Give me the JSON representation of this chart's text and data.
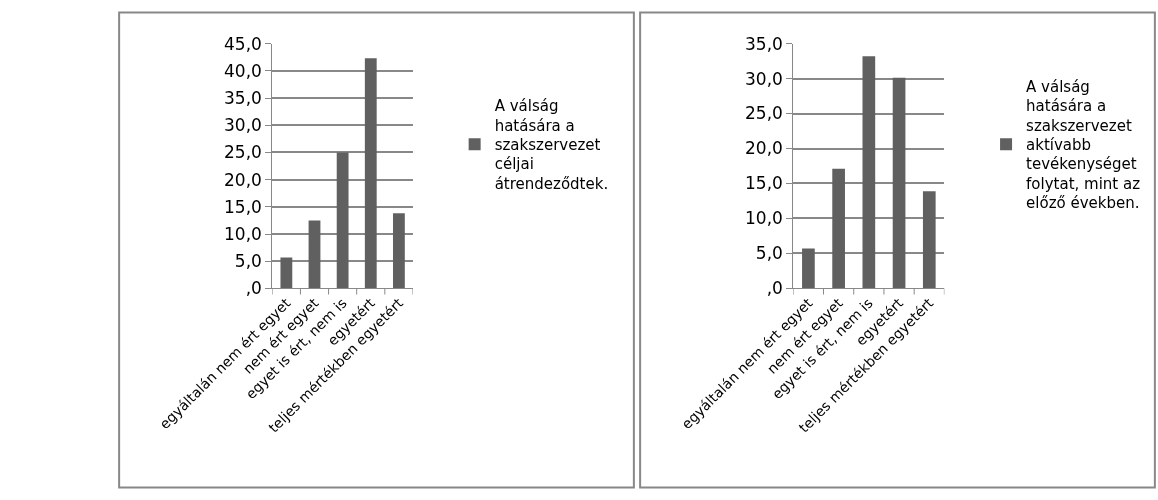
{
  "chart_data": [
    {
      "type": "bar",
      "categories": [
        "egyáltalán nem ért egyet",
        "nem ért egyet",
        "egyet is ért, nem is",
        "egyetért",
        "teljes mértékben egyetért"
      ],
      "series": [
        {
          "name": "A válság hatására a szakszervezet céljai átrendeződtek.",
          "color": "#606060",
          "values": [
            5.7,
            12.5,
            25.0,
            42.3,
            13.8
          ]
        }
      ],
      "ylim": [
        0,
        45
      ],
      "yticks": [
        {
          "value": 0,
          "label": ",0"
        },
        {
          "value": 5,
          "label": "5,0"
        },
        {
          "value": 10,
          "label": "10,0"
        },
        {
          "value": 15,
          "label": "15,0"
        },
        {
          "value": 20,
          "label": "20,0"
        },
        {
          "value": 25,
          "label": "25,0"
        },
        {
          "value": 30,
          "label": "30,0"
        },
        {
          "value": 35,
          "label": "35,0"
        },
        {
          "value": 40,
          "label": "40,0"
        },
        {
          "value": 45,
          "label": "45,0"
        }
      ],
      "grid": "y",
      "legend": "right"
    },
    {
      "type": "bar",
      "categories": [
        "egyáltalán nem ért egyet",
        "nem ért egyet",
        "egyet is ért, nem is",
        "egyetért",
        "teljes mértékben egyetért"
      ],
      "series": [
        {
          "name": "A válság hatására a szakszervezet aktívabb tevékenységet folytat, mint az előző években.",
          "color": "#606060",
          "values": [
            5.7,
            17.1,
            33.2,
            30.1,
            13.9
          ]
        }
      ],
      "ylim": [
        0,
        35
      ],
      "yticks": [
        {
          "value": 0,
          "label": ",0"
        },
        {
          "value": 5,
          "label": "5,0"
        },
        {
          "value": 10,
          "label": "10,0"
        },
        {
          "value": 15,
          "label": "15,0"
        },
        {
          "value": 20,
          "label": "20,0"
        },
        {
          "value": 25,
          "label": "25,0"
        },
        {
          "value": 30,
          "label": "30,0"
        },
        {
          "value": 35,
          "label": "35,0"
        }
      ],
      "grid": "y",
      "legend": "right"
    }
  ]
}
